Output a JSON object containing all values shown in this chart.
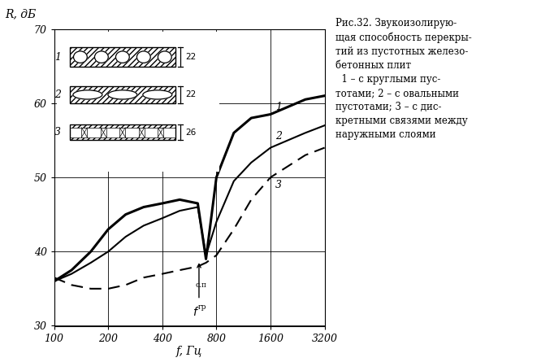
{
  "xlabel": "f, Гц",
  "ylabel": "R, дБ",
  "xlim_log": [
    100,
    3200
  ],
  "ylim": [
    30,
    70
  ],
  "xticks": [
    100,
    200,
    400,
    800,
    1600,
    3200
  ],
  "yticks": [
    30,
    40,
    50,
    60,
    70
  ],
  "bg_color": "#ffffff",
  "curve1_x": [
    100,
    125,
    160,
    200,
    250,
    315,
    400,
    500,
    630,
    700,
    800,
    1000,
    1250,
    1600,
    2000,
    2500,
    3200
  ],
  "curve1_y": [
    36.0,
    37.5,
    40.0,
    43.0,
    45.0,
    46.0,
    46.5,
    47.0,
    46.5,
    39.0,
    50.0,
    56.0,
    58.0,
    58.5,
    59.5,
    60.5,
    61.0
  ],
  "curve2_x": [
    100,
    125,
    160,
    200,
    250,
    315,
    400,
    500,
    630,
    700,
    800,
    1000,
    1250,
    1600,
    2000,
    2500,
    3200
  ],
  "curve2_y": [
    36.0,
    37.0,
    38.5,
    40.0,
    42.0,
    43.5,
    44.5,
    45.5,
    46.0,
    39.5,
    44.0,
    49.5,
    52.0,
    54.0,
    55.0,
    56.0,
    57.0
  ],
  "curve3_x": [
    100,
    125,
    160,
    200,
    250,
    315,
    400,
    500,
    630,
    700,
    800,
    1000,
    1250,
    1600,
    2000,
    2500,
    3200
  ],
  "curve3_y": [
    36.5,
    35.5,
    35.0,
    35.0,
    35.5,
    36.5,
    37.0,
    37.5,
    38.0,
    38.5,
    39.5,
    43.0,
    47.0,
    50.0,
    51.5,
    53.0,
    54.0
  ],
  "right_text_lines": [
    "Рис.32. Звукоизолирую-",
    "щая способность перекры-",
    "тий из пустотных железо-",
    "бетонных плит",
    "  1 – с круглыми пус-",
    "тотами; 2 – с овальными",
    "пустотами; 3 – с дис-",
    "кретными связями между",
    "наружными слоями"
  ],
  "inset_labels": [
    "1",
    "2",
    "3"
  ],
  "inset_dim_labels": [
    "22",
    "22",
    "26"
  ]
}
